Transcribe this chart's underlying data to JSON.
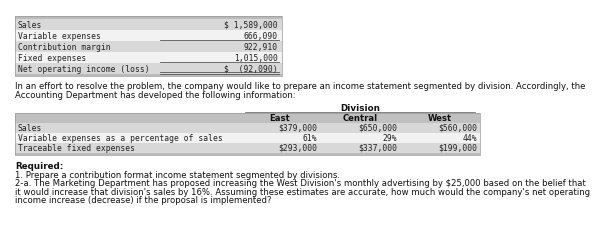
{
  "top_table": {
    "rows": [
      [
        "Sales",
        "$ 1,589,000"
      ],
      [
        "Variable expenses",
        "666,090"
      ],
      [
        "Contribution margin",
        "922,910"
      ],
      [
        "Fixed expenses",
        "1,015,000"
      ],
      [
        "Net operating income (loss)",
        "$  (92,090)"
      ]
    ],
    "shaded_rows": [
      0,
      2,
      4
    ],
    "underline_rows": [
      1,
      3
    ],
    "double_underline_row": 4
  },
  "paragraph": "In an effort to resolve the problem, the company would like to prepare an income statement segmented by division. Accordingly, the\nAccounting Department has developed the following information:",
  "division_table": {
    "header_group": "Division",
    "columns": [
      "East",
      "Central",
      "West"
    ],
    "rows": [
      [
        "Sales",
        "$379,000",
        "$650,000",
        "$560,000"
      ],
      [
        "Variable expenses as a percentage of sales",
        "61%",
        "29%",
        "44%"
      ],
      [
        "Traceable fixed expenses",
        "$293,000",
        "$337,000",
        "$199,000"
      ]
    ],
    "shaded_rows": [
      0,
      2
    ]
  },
  "required_text": [
    "Required:",
    "1. Prepare a contribution format income statement segmented by divisions.",
    "2-a. The Marketing Department has proposed increasing the West Division's monthly advertising by $25,000 based on the belief that",
    "it would increase that division's sales by 16%. Assuming these estimates are accurate, how much would the company's net operating",
    "income increase (decrease) if the proposal is implemented?"
  ],
  "bg_color": "#ffffff",
  "table_border": "#999999",
  "shaded_bg": "#d8d8d8",
  "white_bg": "#f2f2f2",
  "header_bg": "#c0c0c0",
  "font_size": 5.8,
  "mono_font": "DejaVu Sans Mono"
}
